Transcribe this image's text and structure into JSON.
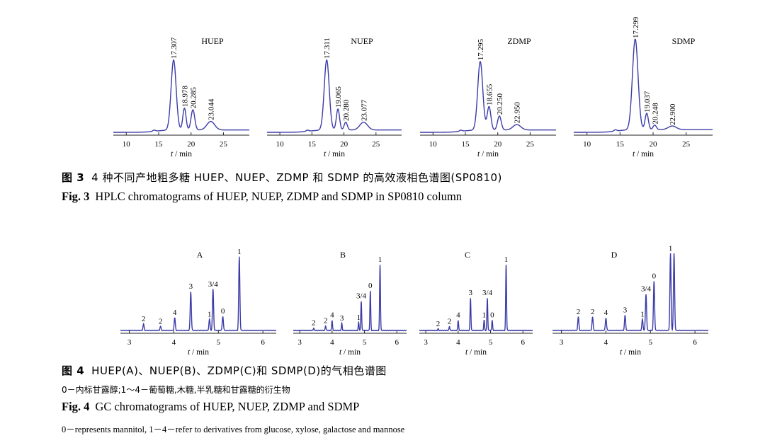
{
  "fig3": {
    "caption_cn_label": "图 3",
    "caption_cn_text": "4 种不同产地粗多糖 HUEP、NUEP、ZDMP 和 SDMP 的高效液相色谱图(SP0810)",
    "caption_en_label": "Fig. 3",
    "caption_en_text": "HPLC chromatograms of HUEP, NUEP, ZDMP and SDMP in SP0810 column"
  },
  "fig4": {
    "caption_cn_label": "图 4",
    "caption_cn_text": "HUEP(A)、NUEP(B)、ZDMP(C)和 SDMP(D)的气相色谱图",
    "note_cn": "0－内标甘露醇;1～4－葡萄糖,木糖,半乳糖和甘露糖的衍生物",
    "caption_en_label": "Fig. 4",
    "caption_en_text": "GC chromatograms of HUEP, NUEP, ZDMP and SDMP",
    "note_en": "0－represents mannitol, 1－4－refer to derivatives from glucose, xylose, galactose and mannose"
  },
  "chart_data": [
    {
      "type": "line",
      "figure": "Fig. 3",
      "title": "HUEP",
      "xlabel": "t / min",
      "xlim": [
        8,
        29
      ],
      "xticks": [
        10,
        15,
        20,
        25
      ],
      "peaks": [
        {
          "x": 17.307,
          "h": 0.9,
          "w": 0.55,
          "label": "17.307"
        },
        {
          "x": 18.978,
          "h": 0.28,
          "w": 0.35,
          "label": "18.978"
        },
        {
          "x": 20.285,
          "h": 0.26,
          "w": 0.4,
          "label": "20.285"
        },
        {
          "x": 23.044,
          "h": 0.11,
          "w": 0.85,
          "label": "23.044"
        }
      ]
    },
    {
      "type": "line",
      "figure": "Fig. 3",
      "title": "NUEP",
      "xlabel": "t / min",
      "xlim": [
        8,
        29
      ],
      "xticks": [
        10,
        15,
        20,
        25
      ],
      "peaks": [
        {
          "x": 17.311,
          "h": 0.9,
          "w": 0.55,
          "label": "17.311"
        },
        {
          "x": 19.065,
          "h": 0.27,
          "w": 0.35,
          "label": "19.065"
        },
        {
          "x": 20.28,
          "h": 0.1,
          "w": 0.35,
          "label": "20.280"
        },
        {
          "x": 23.077,
          "h": 0.1,
          "w": 0.85,
          "label": "23.077"
        }
      ]
    },
    {
      "type": "line",
      "figure": "Fig. 3",
      "title": "ZDMP",
      "xlabel": "t / min",
      "xlim": [
        8,
        29
      ],
      "xticks": [
        10,
        15,
        20,
        25
      ],
      "peaks": [
        {
          "x": 17.295,
          "h": 0.88,
          "w": 0.55,
          "label": "17.295"
        },
        {
          "x": 18.655,
          "h": 0.3,
          "w": 0.4,
          "label": "18.655"
        },
        {
          "x": 20.25,
          "h": 0.18,
          "w": 0.4,
          "label": "20.250"
        },
        {
          "x": 22.95,
          "h": 0.07,
          "w": 0.85,
          "label": "22.950"
        }
      ]
    },
    {
      "type": "line",
      "figure": "Fig. 3",
      "title": "SDMP",
      "xlabel": "t / min",
      "xlim": [
        8,
        29
      ],
      "xticks": [
        10,
        15,
        20,
        25
      ],
      "peaks": [
        {
          "x": 17.299,
          "h": 1.0,
          "w": 0.6,
          "label": "17.299"
        },
        {
          "x": 19.037,
          "h": 0.18,
          "w": 0.35,
          "label": "19.037"
        },
        {
          "x": 20.248,
          "h": 0.05,
          "w": 0.35,
          "label": "20.248"
        },
        {
          "x": 22.9,
          "h": 0.04,
          "w": 0.85,
          "label": "22.900"
        }
      ]
    },
    {
      "type": "line",
      "figure": "Fig. 4",
      "title": "A",
      "xlabel": "t / min",
      "xlim": [
        2.8,
        6.3
      ],
      "xticks": [
        3,
        4,
        5,
        6
      ],
      "peaks": [
        {
          "x": 3.32,
          "h": 0.08,
          "label": "2"
        },
        {
          "x": 3.7,
          "h": 0.05,
          "label": "2"
        },
        {
          "x": 4.02,
          "h": 0.16,
          "label": "4"
        },
        {
          "x": 4.38,
          "h": 0.49,
          "label": "3"
        },
        {
          "x": 4.8,
          "h": 0.14,
          "label": "1"
        },
        {
          "x": 4.88,
          "h": 0.52,
          "label": "3/4"
        },
        {
          "x": 5.1,
          "h": 0.18,
          "label": "0"
        },
        {
          "x": 5.47,
          "h": 0.93,
          "label": "1"
        }
      ]
    },
    {
      "type": "line",
      "figure": "Fig. 4",
      "title": "B",
      "xlabel": "t / min",
      "xlim": [
        2.8,
        6.3
      ],
      "xticks": [
        3,
        4,
        5,
        6
      ],
      "peaks": [
        {
          "x": 3.43,
          "h": 0.03,
          "label": "2"
        },
        {
          "x": 3.8,
          "h": 0.06,
          "label": "2"
        },
        {
          "x": 4.0,
          "h": 0.13,
          "label": "4"
        },
        {
          "x": 4.3,
          "h": 0.09,
          "label": "3"
        },
        {
          "x": 4.82,
          "h": 0.1,
          "label": "1"
        },
        {
          "x": 4.9,
          "h": 0.37,
          "label": "3/4"
        },
        {
          "x": 5.18,
          "h": 0.5,
          "label": "0"
        },
        {
          "x": 5.48,
          "h": 0.83,
          "label": "1"
        }
      ]
    },
    {
      "type": "line",
      "figure": "Fig. 4",
      "title": "C",
      "xlabel": "t / min",
      "xlim": [
        2.8,
        6.3
      ],
      "xticks": [
        3,
        4,
        5,
        6
      ],
      "peaks": [
        {
          "x": 3.38,
          "h": 0.02,
          "label": "2"
        },
        {
          "x": 3.73,
          "h": 0.05,
          "label": "2"
        },
        {
          "x": 4.0,
          "h": 0.13,
          "label": "4"
        },
        {
          "x": 4.38,
          "h": 0.41,
          "label": "3"
        },
        {
          "x": 4.8,
          "h": 0.13,
          "label": "1"
        },
        {
          "x": 4.9,
          "h": 0.41,
          "label": "3/4"
        },
        {
          "x": 5.05,
          "h": 0.13,
          "label": "0"
        },
        {
          "x": 5.48,
          "h": 0.83,
          "label": "1"
        }
      ]
    },
    {
      "type": "line",
      "figure": "Fig. 4",
      "title": "D",
      "xlabel": "t / min",
      "xlim": [
        2.8,
        6.3
      ],
      "xticks": [
        3,
        4,
        5,
        6
      ],
      "peaks": [
        {
          "x": 3.38,
          "h": 0.17,
          "label": "2"
        },
        {
          "x": 3.7,
          "h": 0.17,
          "label": "2"
        },
        {
          "x": 4.0,
          "h": 0.16,
          "label": "4"
        },
        {
          "x": 4.43,
          "h": 0.19,
          "label": "3"
        },
        {
          "x": 4.82,
          "h": 0.14,
          "label": "1"
        },
        {
          "x": 4.9,
          "h": 0.46,
          "label": "3/4"
        },
        {
          "x": 5.08,
          "h": 0.62,
          "label": "0"
        },
        {
          "x": 5.45,
          "h": 0.97,
          "label": "1"
        },
        {
          "x": 5.53,
          "h": 0.97,
          "label": ""
        }
      ]
    }
  ]
}
